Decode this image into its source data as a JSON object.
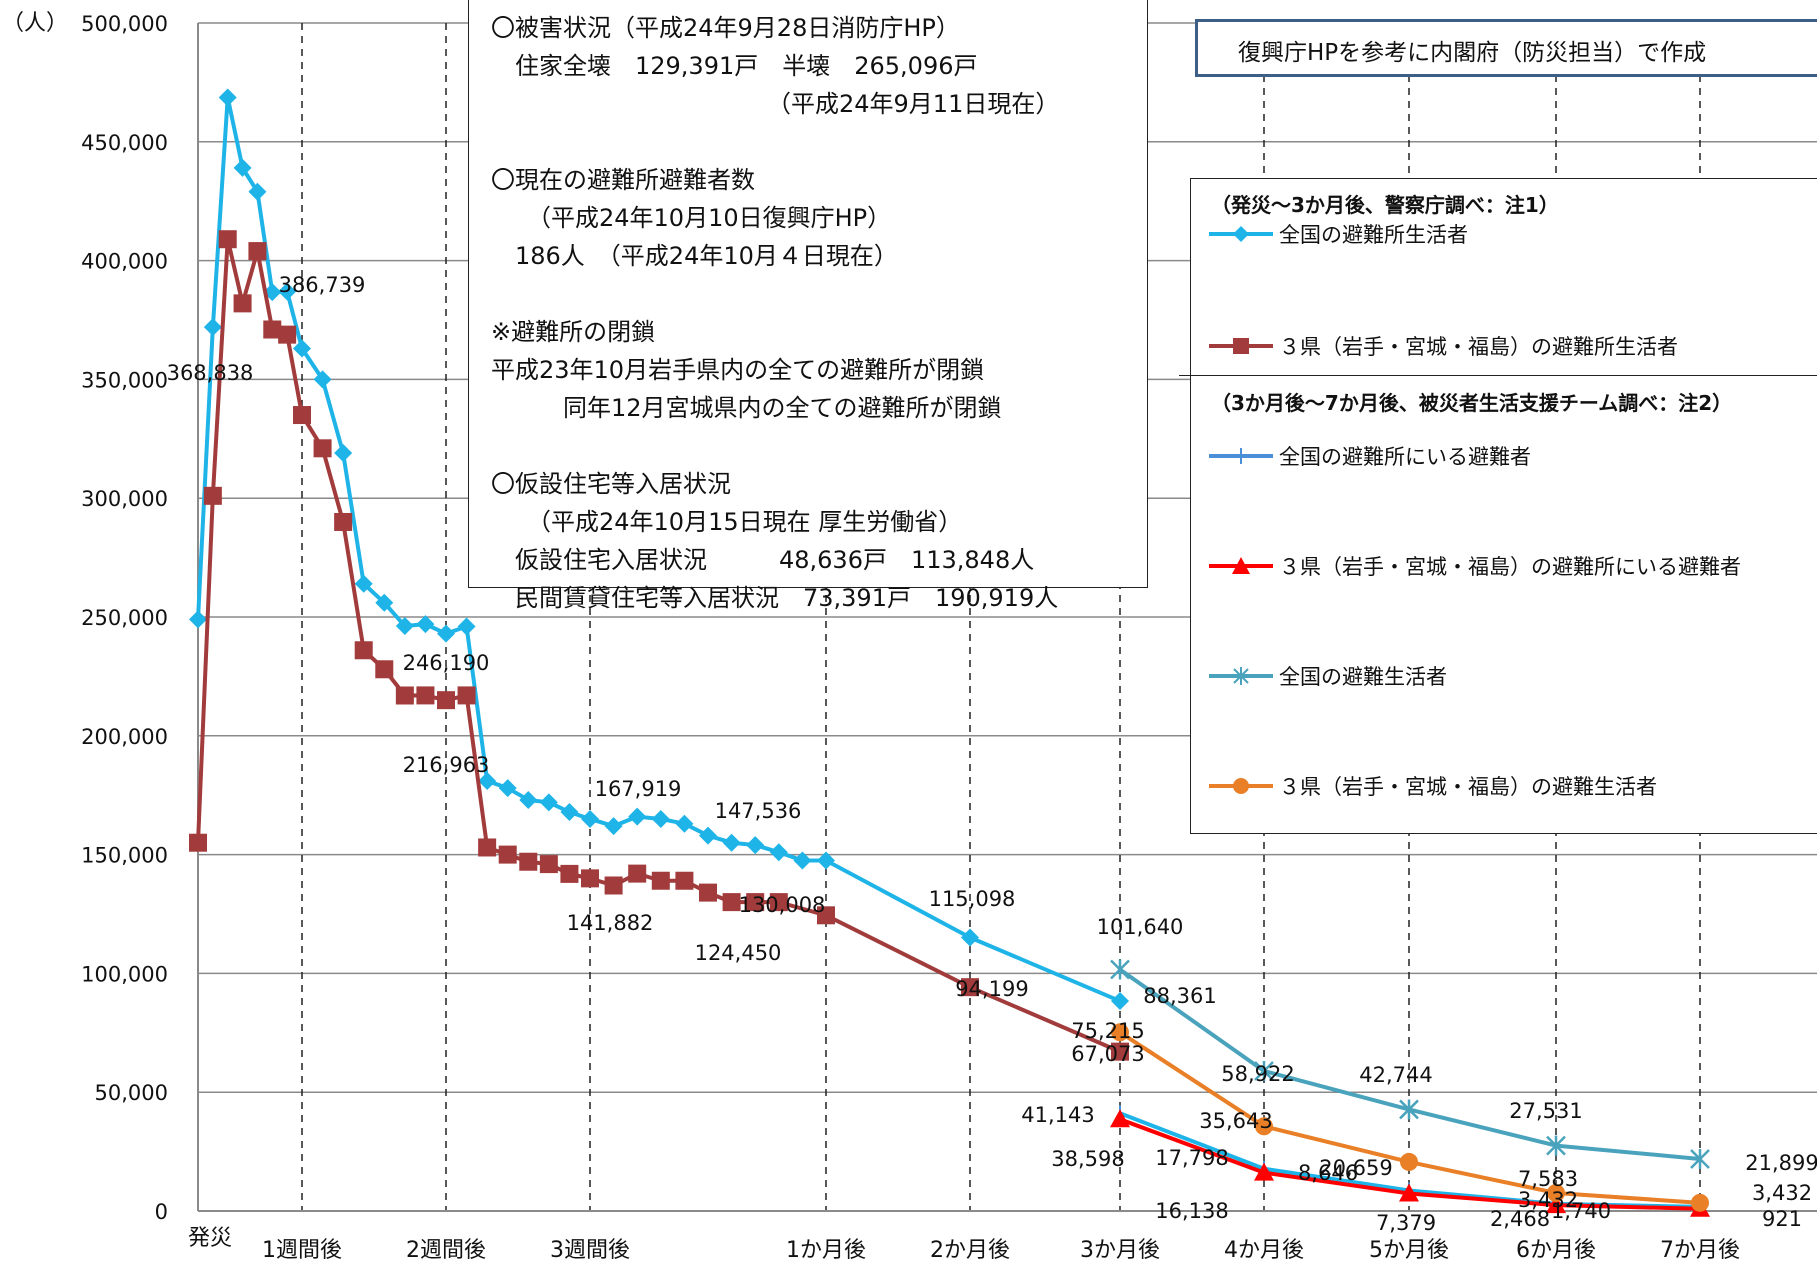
{
  "chart_data": {
    "type": "line",
    "ylabel": "（人）",
    "ylim": [
      0,
      500000
    ],
    "yticks": [
      "0",
      "50,000",
      "100,000",
      "150,000",
      "200,000",
      "250,000",
      "300,000",
      "350,000",
      "400,000",
      "450,000",
      "500,000"
    ],
    "x_ticks": [
      {
        "label": "発災",
        "day": 0
      },
      {
        "label": "1週間後",
        "day": 7
      },
      {
        "label": "2週間後",
        "day": 14
      },
      {
        "label": "3週間後",
        "day": 21
      },
      {
        "label": "1か月後",
        "day": 31
      },
      {
        "label": "2か月後",
        "day": 61
      },
      {
        "label": "3か月後",
        "day": 92
      },
      {
        "label": "4か月後",
        "day": 122
      },
      {
        "label": "5か月後",
        "day": 153
      },
      {
        "label": "6か月後",
        "day": 184
      },
      {
        "label": "7か月後",
        "day": 214
      }
    ],
    "dashed_gridlines_at_day": [
      7,
      14,
      21,
      31,
      61,
      92,
      122,
      153,
      184,
      214
    ],
    "series": [
      {
        "name": "全国の避難所生活者",
        "color": "#1fb4e8",
        "marker": "diamond",
        "x": [
          0,
          1,
          2,
          3,
          4,
          5,
          6,
          7,
          8,
          9,
          10,
          11,
          12,
          13,
          14,
          15,
          16,
          17,
          18,
          19,
          20,
          21,
          22,
          23,
          24,
          25,
          26,
          27,
          28,
          29,
          30,
          31,
          61,
          92
        ],
        "y": [
          249000,
          372000,
          468653,
          439000,
          429000,
          386739,
          387000,
          363000,
          350000,
          319000,
          264000,
          256000,
          246190,
          247000,
          243000,
          246000,
          181000,
          178000,
          173000,
          172000,
          167919,
          165000,
          162000,
          166000,
          165000,
          163000,
          158000,
          155000,
          154000,
          151000,
          147536,
          147536,
          115098,
          88361
        ]
      },
      {
        "name": "３県（岩手・宮城・福島）の避難所生活者",
        "color": "#a23b3b",
        "marker": "square",
        "x": [
          0,
          1,
          2,
          3,
          4,
          5,
          6,
          7,
          8,
          9,
          10,
          11,
          12,
          13,
          14,
          15,
          16,
          17,
          18,
          19,
          20,
          21,
          22,
          23,
          24,
          25,
          26,
          27,
          28,
          29,
          31,
          61,
          92
        ],
        "y": [
          155000,
          301000,
          409000,
          382000,
          404000,
          371000,
          368838,
          335000,
          321000,
          290000,
          236000,
          228000,
          216963,
          217000,
          215000,
          217000,
          153000,
          150000,
          147000,
          146000,
          141882,
          140000,
          137000,
          142000,
          139000,
          139000,
          134000,
          130000,
          130008,
          130000,
          124450,
          94199,
          67073
        ]
      },
      {
        "name": "全国の避難所にいる避難者",
        "color": "#1fb4e8",
        "marker": "plus",
        "x": [
          92,
          122,
          153,
          184,
          214
        ],
        "y": [
          41143,
          17798,
          8646,
          3000,
          1740
        ]
      },
      {
        "name": "３県（岩手・宮城・福島）の避難所にいる避難者",
        "color": "#ff0000",
        "marker": "triangle",
        "x": [
          92,
          122,
          153,
          184,
          214
        ],
        "y": [
          38598,
          16138,
          7379,
          2468,
          921
        ]
      },
      {
        "name": "全国の避難生活者",
        "color": "#4aa3bd",
        "marker": "star",
        "x": [
          92,
          122,
          153,
          184,
          214
        ],
        "y": [
          101640,
          58922,
          42744,
          27531,
          21899
        ]
      },
      {
        "name": "３県（岩手・宮城・福島）の避難生活者",
        "color": "#e97f26",
        "marker": "circle",
        "x": [
          92,
          122,
          153,
          184,
          214
        ],
        "y": [
          75215,
          35643,
          20659,
          7583,
          3432
        ]
      }
    ],
    "data_labels": [
      "386,739",
      "368,838",
      "246,190",
      "216,963",
      "167,919",
      "147,536",
      "141,882",
      "130,008",
      "124,450",
      "115,098",
      "94,199",
      "101,640",
      "88,361",
      "75,215",
      "67,073",
      "41,143",
      "38,598",
      "58,922",
      "35,643",
      "17,798",
      "16,138",
      "42,744",
      "20,659",
      "8,646",
      "7,379",
      "27,531",
      "7,583",
      "3,432",
      "2,468",
      "1,740",
      "21,899",
      "3,432",
      "921"
    ]
  },
  "info_box": {
    "lines": [
      "〇被害状況（平成24年9月28日消防庁HP）",
      "　住家全壊　129,391戸　半壊　265,096戸",
      "　　　　　　　　　　　　（平成24年9月11日現在）",
      "",
      "〇現在の避難所避難者数",
      "　　（平成24年10月10日復興庁HP）",
      "　186人　（平成24年10月４日現在）",
      "",
      "※避難所の閉鎖",
      "平成23年10月岩手県内の全ての避難所が閉鎖",
      "　　　同年12月宮城県内の全ての避難所が閉鎖",
      "",
      "〇仮設住宅等入居状況",
      "　　（平成24年10月15日現在 厚生労働省）",
      "　仮設住宅入居状況　　　48,636戸　113,848人",
      "　民間賃貸住宅等入居状況　73,391戸　190,919人"
    ]
  },
  "source_note": "復興庁HPを参考に内閣府（防災担当）で作成",
  "legend": {
    "heading1": "（発災～3か月後、警察庁調べ：注1）",
    "heading2": "（3か月後～7か月後、被災者生活支援チーム調べ：注2）",
    "items": [
      "全国の避難所生活者",
      "３県（岩手・宮城・福島）の避難所生活者",
      "全国の避難所にいる避難者",
      "３県（岩手・宮城・福島）の避難所にいる避難者",
      "全国の避難生活者",
      "３県（岩手・宮城・福島）の避難生活者"
    ]
  }
}
